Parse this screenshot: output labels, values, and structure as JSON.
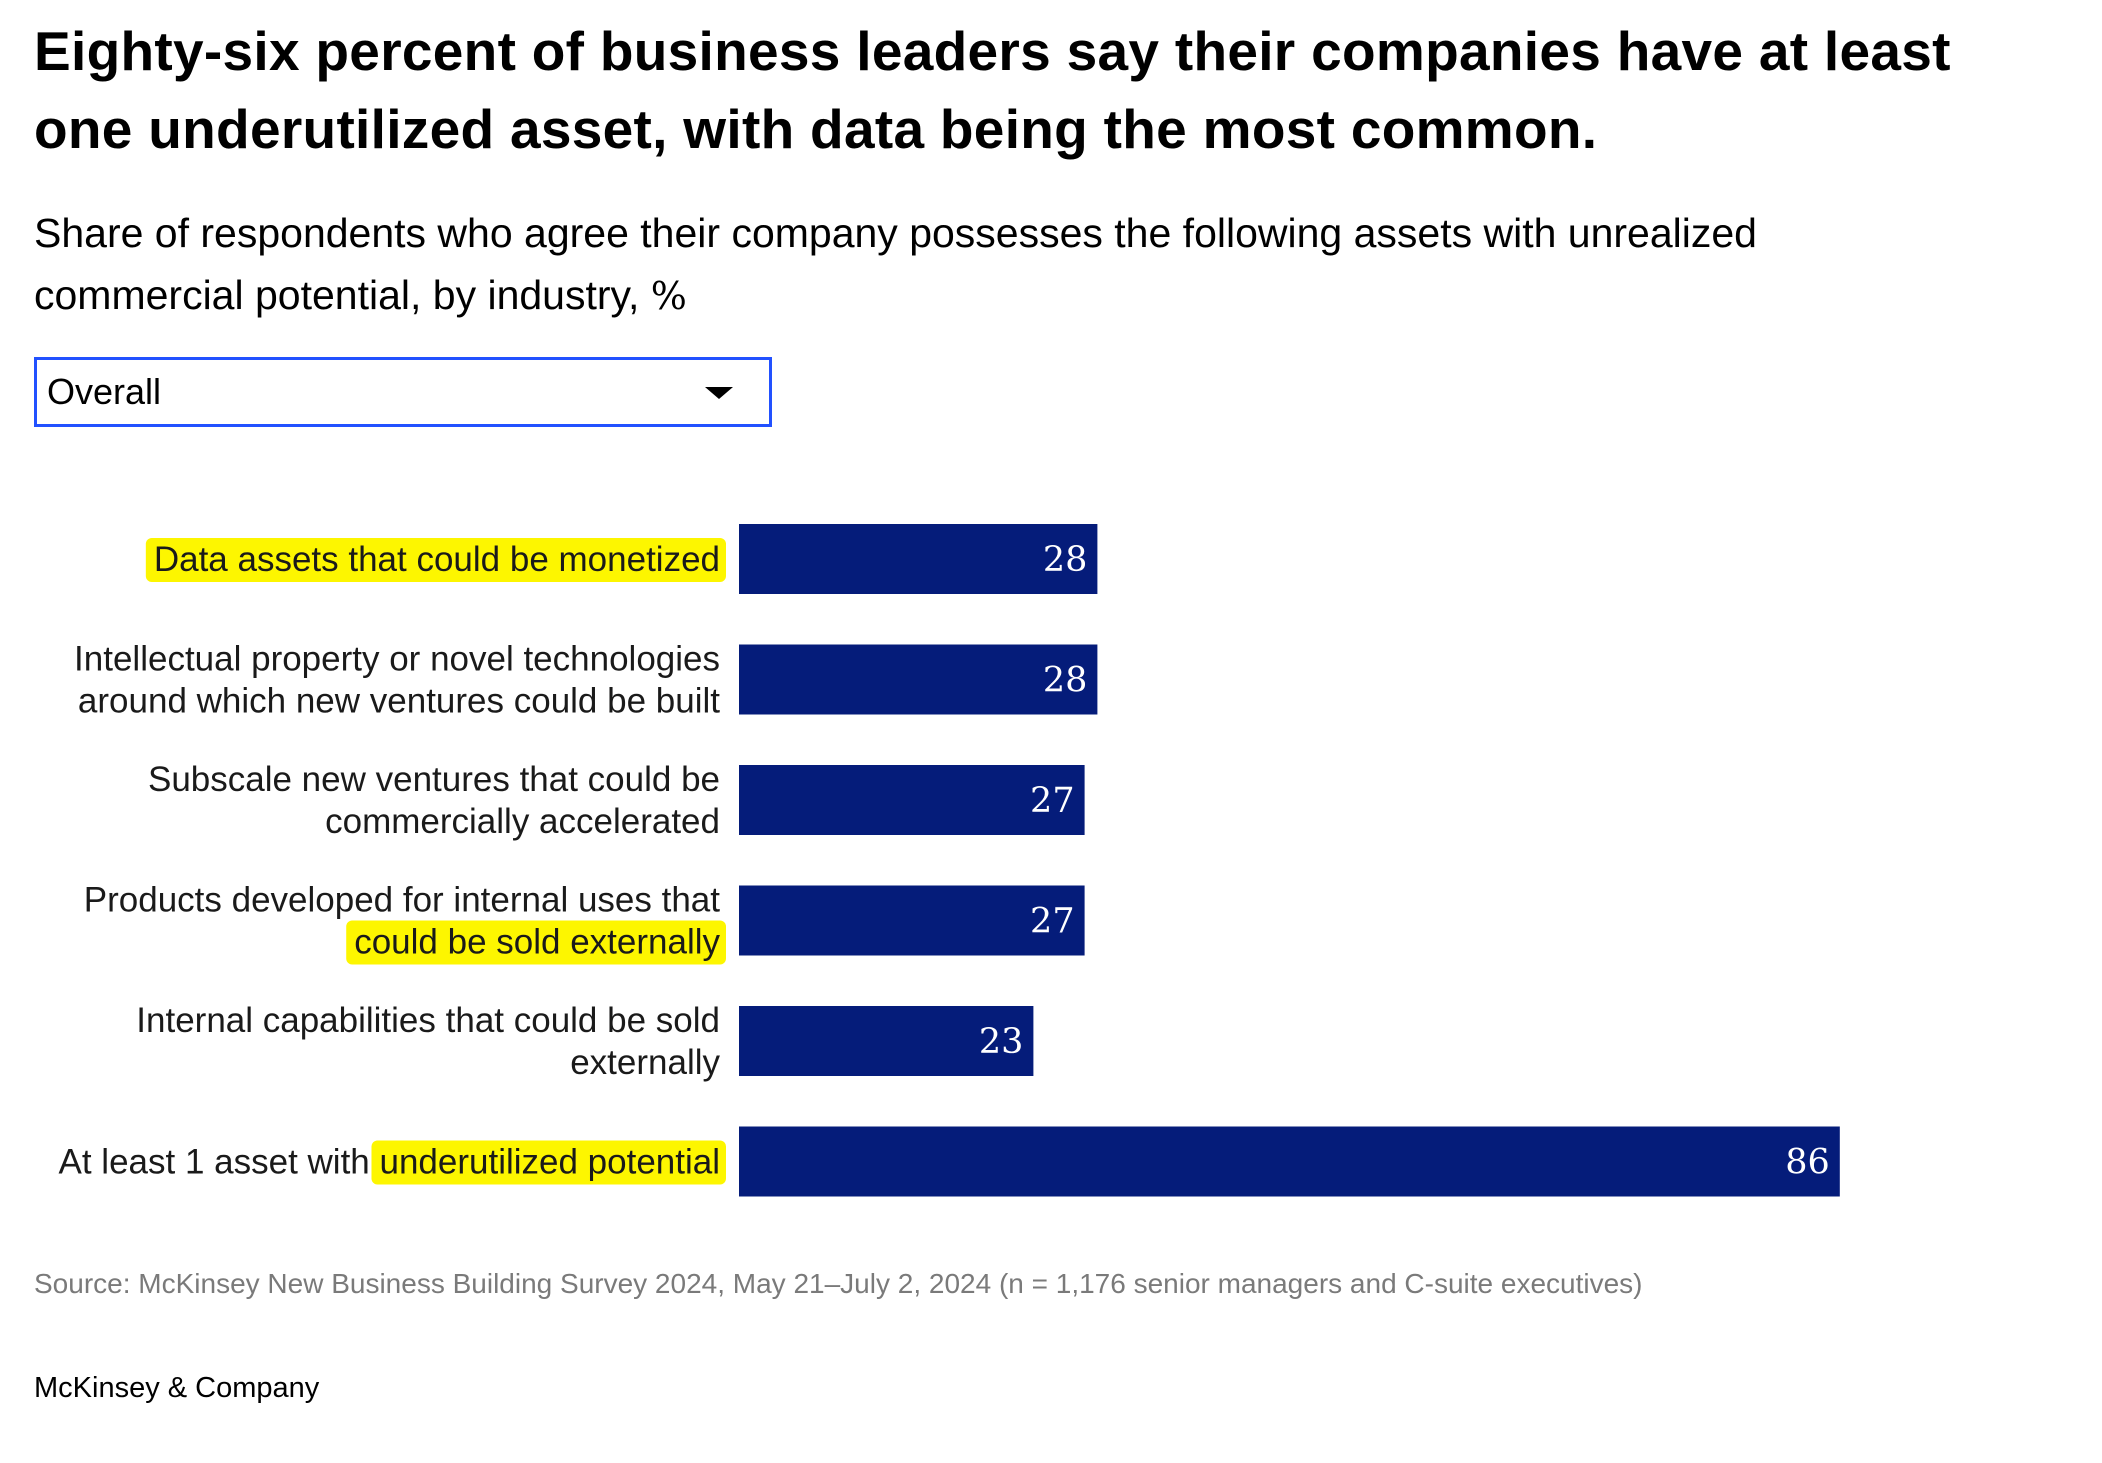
{
  "header": {
    "title": "Eighty-six percent of business leaders say their companies have at least one underutilized asset, with data being the most common.",
    "subtitle": "Share of respondents who agree their company possesses the following assets with unrealized commercial potential, by industry,",
    "subtitle_unit": "%"
  },
  "filter": {
    "selected": "Overall"
  },
  "chart_data": {
    "type": "bar",
    "orientation": "horizontal",
    "bar_color": "#051c7a",
    "highlight_color": "#fdf600",
    "categories": [
      "Data assets that could be monetized",
      "Intellectual property or novel technologies around which new ventures could be built",
      "Subscale new ventures that could be commercially accelerated",
      "Products developed for internal uses that could be sold externally",
      "Internal capabilities that could be sold externally",
      "At least 1 asset with underutilized potential"
    ],
    "category_lines": [
      [
        "Data assets that could be monetized"
      ],
      [
        "Intellectual property or novel technologies",
        "around which new ventures could be built"
      ],
      [
        "Subscale new ventures that could be",
        "commercially accelerated"
      ],
      [
        "Products developed for internal uses that",
        "could be sold externally"
      ],
      [
        "Internal capabilities that could be sold",
        "externally"
      ],
      [
        "At least 1 asset with underutilized potential"
      ]
    ],
    "highlighted_text": [
      "Data assets that could be monetized",
      "",
      "",
      "could be sold externally",
      "",
      "underutilized potential"
    ],
    "values": [
      28,
      28,
      27,
      27,
      23,
      86
    ],
    "xlim": [
      0,
      100
    ],
    "grid": false,
    "legend": "none"
  },
  "footer": {
    "source": "Source: McKinsey New Business Building Survey 2024, May 21–July 2, 2024 (n = 1,176 senior managers and C-suite executives)",
    "brand": "McKinsey & Company"
  }
}
